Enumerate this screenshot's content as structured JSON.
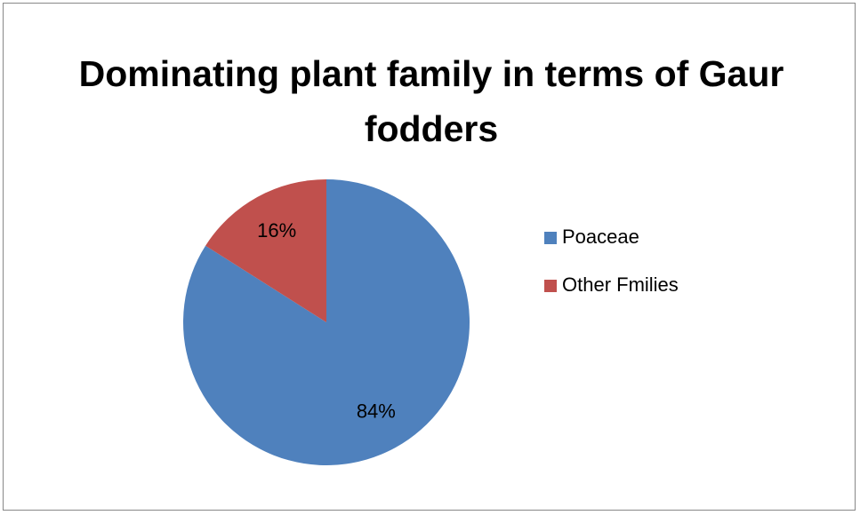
{
  "chart_data": {
    "type": "pie",
    "title": "Dominating plant family in terms of Gaur fodders",
    "categories": [
      "Poaceae",
      "Other Fmilies"
    ],
    "values": [
      84,
      16
    ],
    "value_labels": [
      "84%",
      "16%"
    ],
    "colors": [
      "#4f81bd",
      "#c0504d"
    ],
    "legend": "right"
  }
}
